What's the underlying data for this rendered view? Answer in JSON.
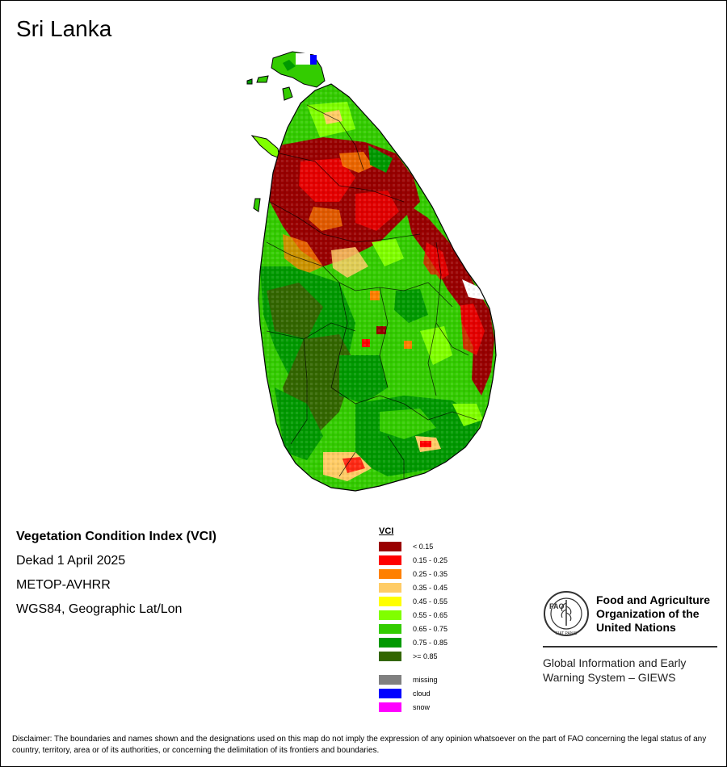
{
  "map_title": "Sri Lanka",
  "info": {
    "product": "Vegetation Condition Index (VCI)",
    "period": "Dekad 1 April 2025",
    "sensor": "METOP-AVHRR",
    "projection": "WGS84, Geographic Lat/Lon"
  },
  "legend": {
    "title": "VCI",
    "classes": [
      {
        "label": "< 0.15",
        "color": "#990000"
      },
      {
        "label": "0.15 - 0.25",
        "color": "#ff0000"
      },
      {
        "label": "0.25 - 0.35",
        "color": "#ff8000"
      },
      {
        "label": "0.35 - 0.45",
        "color": "#ffcc66"
      },
      {
        "label": "0.45 - 0.55",
        "color": "#ffff00"
      },
      {
        "label": "0.55 - 0.65",
        "color": "#80ff00"
      },
      {
        "label": "0.65 - 0.75",
        "color": "#33cc00"
      },
      {
        "label": "0.75 - 0.85",
        "color": "#009900"
      },
      {
        "label": ">= 0.85",
        "color": "#336600"
      }
    ],
    "other": [
      {
        "label": "missing",
        "color": "#808080"
      },
      {
        "label": "cloud",
        "color": "#0000ff"
      },
      {
        "label": "snow",
        "color": "#ff00ff"
      }
    ]
  },
  "fao": {
    "logo_text": "FAO",
    "logo_motto": "FIAT PANIS",
    "name_line1": "Food and Agriculture",
    "name_line2": "Organization of the",
    "name_line3": "United Nations",
    "giews_line1": "Global Information and Early",
    "giews_line2": "Warning System – GIEWS"
  },
  "disclaimer": "Disclaimer: The boundaries and names shown and the designations used on this map do not imply the expression of any opinion whatsoever on the part of FAO concerning the legal status of any country, territory, area or of its authorities, or concerning the delimitation of its frontiers and boundaries."
}
